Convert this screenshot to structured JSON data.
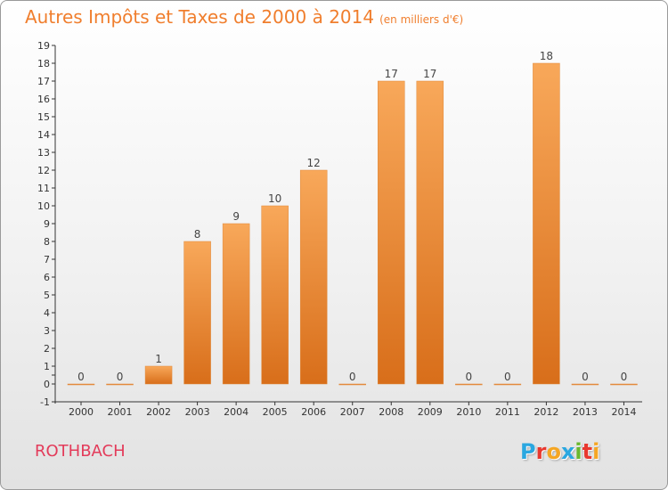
{
  "header": {
    "title": "Autres Impôts et Taxes de 2000 à 2014",
    "unit": "(en milliers d'€)"
  },
  "footer": {
    "commune": "ROTHBACH",
    "logo": {
      "letters": [
        "P",
        "r",
        "o",
        "x",
        "i",
        "t",
        "i"
      ],
      "colors": [
        "#2aa7e0",
        "#e8382f",
        "#f5a623",
        "#2aa7e0",
        "#6ab82e",
        "#e8382f",
        "#f5a623"
      ]
    }
  },
  "chart_data": {
    "type": "bar",
    "title": "Autres Impôts et Taxes de 2000 à 2014",
    "unit": "(en milliers d'€)",
    "categories": [
      "2000",
      "2001",
      "2002",
      "2003",
      "2004",
      "2005",
      "2006",
      "2007",
      "2008",
      "2009",
      "2010",
      "2011",
      "2012",
      "2013",
      "2014"
    ],
    "values": [
      0,
      0,
      1,
      8,
      9,
      10,
      12,
      0,
      17,
      17,
      0,
      0,
      18,
      0,
      0
    ],
    "ylim": [
      -1,
      19
    ],
    "yticks": [
      "-1",
      "0",
      "",
      "1",
      "2",
      "3",
      "4",
      "5",
      "6",
      "7",
      "8",
      "9",
      "10",
      "11",
      "12",
      "13",
      "14",
      "15",
      "16",
      "17",
      "18",
      "19"
    ],
    "bar_color_top": "#f8a85a",
    "bar_color_bottom": "#d86e1a",
    "grid": false,
    "legend": "none"
  }
}
